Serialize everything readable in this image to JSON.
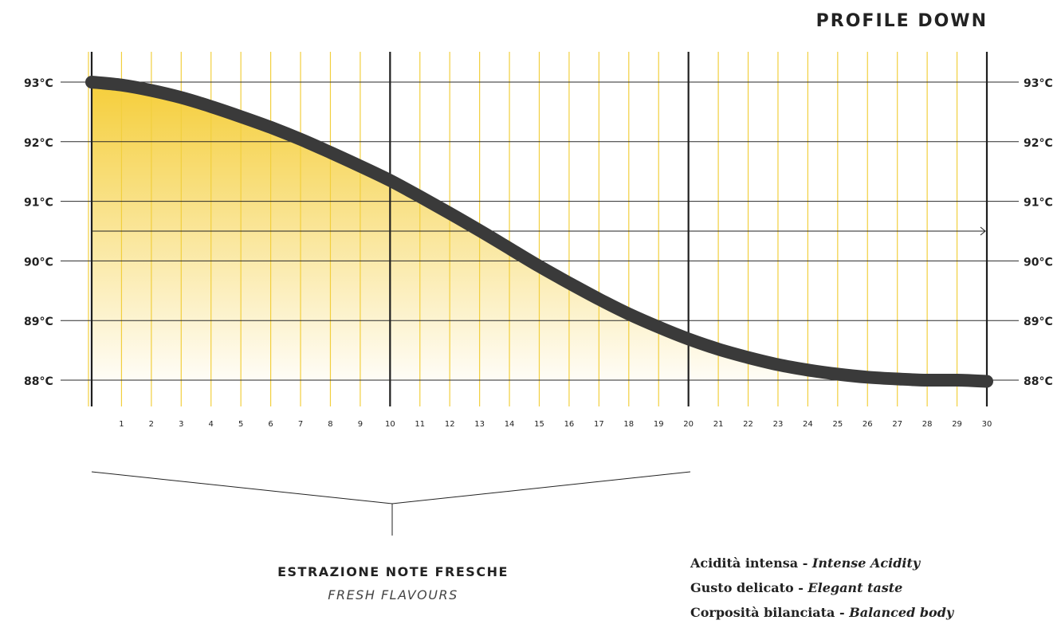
{
  "title": "PROFILE DOWN",
  "chart_data": {
    "type": "area",
    "title": "PROFILE DOWN",
    "x": [
      0,
      1,
      2,
      3,
      4,
      5,
      6,
      7,
      8,
      9,
      10,
      11,
      12,
      13,
      14,
      15,
      16,
      17,
      18,
      19,
      20,
      21,
      22,
      23,
      24,
      25,
      26,
      27,
      28,
      29,
      30
    ],
    "xticks": [
      "1",
      "2",
      "3",
      "4",
      "5",
      "6",
      "7",
      "8",
      "9",
      "10",
      "11",
      "12",
      "13",
      "14",
      "15",
      "16",
      "17",
      "18",
      "19",
      "20",
      "21",
      "22",
      "23",
      "24",
      "25",
      "26",
      "27",
      "28",
      "29",
      "30"
    ],
    "xlim": [
      0,
      30
    ],
    "yticks": [
      "93°C",
      "92°C",
      "91°C",
      "90°C",
      "89°C",
      "88°C"
    ],
    "ylim": [
      88,
      93
    ],
    "series": [
      {
        "values": [
          93.0,
          92.95,
          92.86,
          92.74,
          92.59,
          92.42,
          92.24,
          92.04,
          91.82,
          91.59,
          91.35,
          91.08,
          90.8,
          90.51,
          90.21,
          89.91,
          89.63,
          89.36,
          89.11,
          88.89,
          88.69,
          88.52,
          88.38,
          88.26,
          88.17,
          88.1,
          88.05,
          88.02,
          88.0,
          88.0,
          87.98
        ]
      }
    ],
    "fill_color": "#F5CE3A",
    "line_color": "#3a3a3a",
    "grid": true
  },
  "captions": {
    "main": "ESTRAZIONE NOTE FRESCHE",
    "sub": "FRESH FLAVOURS"
  },
  "notes": [
    {
      "it_label": "Acidità intensa - ",
      "en_label": "Intense Acidity"
    },
    {
      "it_label": "Gusto delicato - ",
      "en_label": "Elegant taste"
    },
    {
      "it_label": "Corposità bilanciata - ",
      "en_label": "Balanced body"
    }
  ]
}
